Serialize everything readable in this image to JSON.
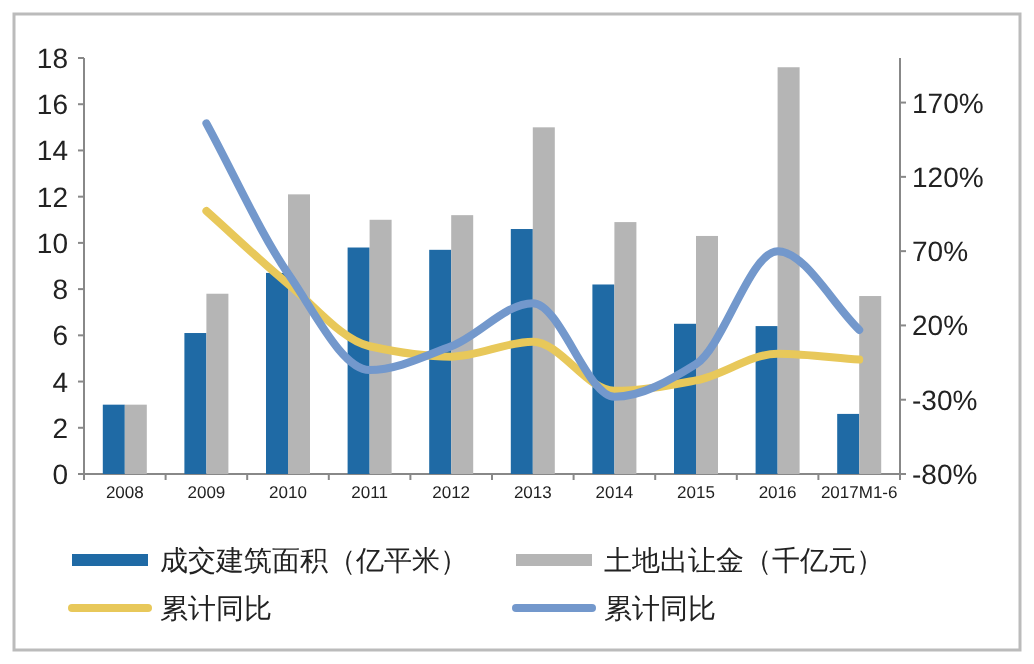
{
  "chart_data": {
    "type": "bar",
    "categories": [
      "2008",
      "2009",
      "2010",
      "2011",
      "2012",
      "2013",
      "2014",
      "2015",
      "2016",
      "2017M1-6"
    ],
    "series": [
      {
        "name": "成交建筑面积（亿平米）",
        "color": "#1f6aa5",
        "values": [
          3.0,
          6.1,
          8.7,
          9.8,
          9.7,
          10.6,
          8.2,
          6.5,
          6.4,
          2.6
        ]
      },
      {
        "name": "土地出让金（千亿元）",
        "color": "#b5b5b5",
        "values": [
          3.0,
          7.8,
          12.1,
          11.0,
          11.2,
          15.0,
          10.9,
          10.3,
          17.6,
          7.7
        ]
      },
      {
        "name": "累计同比",
        "type": "line",
        "axis": "y2",
        "color": "#e8c85a",
        "values": [
          null,
          97,
          48,
          6,
          -1,
          9,
          -24,
          -17,
          1,
          -3
        ]
      },
      {
        "name": "累计同比",
        "type": "line",
        "axis": "y2",
        "color": "#7398cc",
        "values": [
          null,
          156,
          55,
          -10,
          6,
          35,
          -28,
          -6,
          70,
          17
        ]
      }
    ],
    "ylim": [
      0,
      18
    ],
    "yticks": [
      0,
      2,
      4,
      6,
      8,
      10,
      12,
      14,
      16,
      18
    ],
    "y2lim": [
      -80,
      200
    ],
    "y2ticks": [
      {
        "value": -80,
        "label": "-80%"
      },
      {
        "value": -30,
        "label": "-30%"
      },
      {
        "value": 20,
        "label": "20%"
      },
      {
        "value": 70,
        "label": "70%"
      },
      {
        "value": 120,
        "label": "120%"
      },
      {
        "value": 170,
        "label": "170%"
      }
    ],
    "grid": false,
    "legend": "bottom",
    "marker": "none",
    "line_style": "solid"
  }
}
